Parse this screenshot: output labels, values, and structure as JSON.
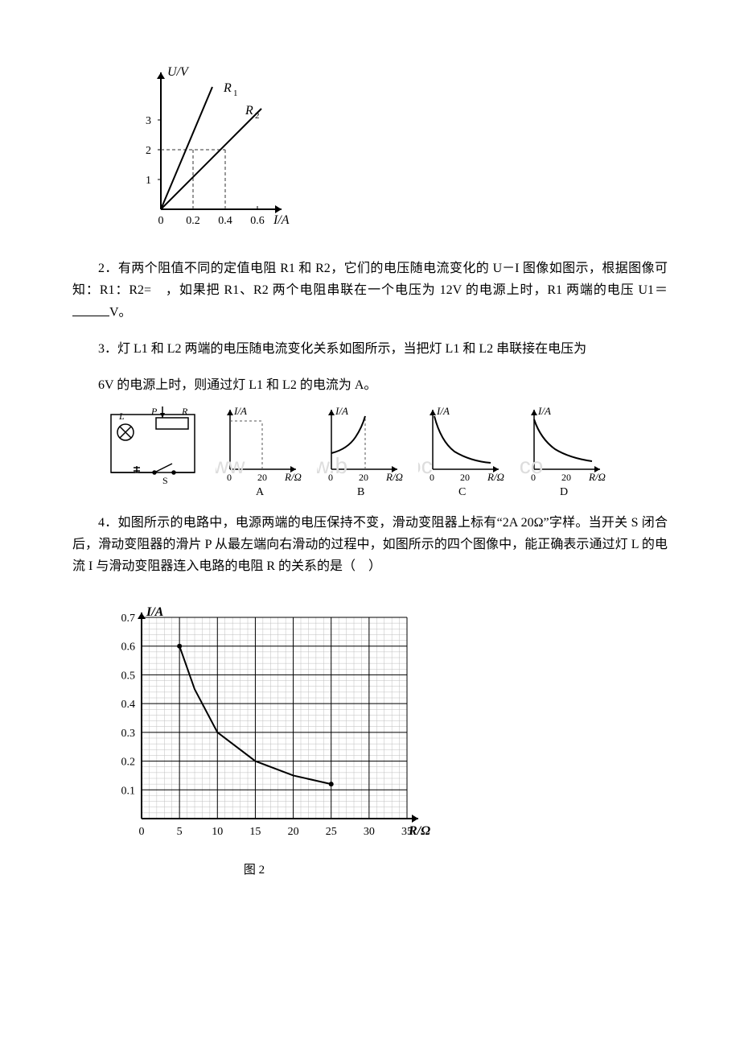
{
  "chart1": {
    "type": "line",
    "y_axis_label": "U/V",
    "x_axis_label": "I/A",
    "x_ticks": [
      "0",
      "0.2",
      "0.4",
      "0.6"
    ],
    "y_ticks": [
      "1",
      "2",
      "3"
    ],
    "series": [
      {
        "name": "R1",
        "label": "R₁",
        "points": [
          [
            0,
            0
          ],
          [
            0.2,
            2
          ],
          [
            0.32,
            3.1
          ]
        ],
        "color": "#000000"
      },
      {
        "name": "R2",
        "label": "R₂",
        "points": [
          [
            0,
            0
          ],
          [
            0.4,
            2
          ],
          [
            0.62,
            3.1
          ]
        ],
        "color": "#000000"
      }
    ],
    "colors": {
      "axis": "#000000",
      "dash": "#333333",
      "bg": "#ffffff"
    },
    "dash_lines": [
      {
        "from": [
          0.2,
          0
        ],
        "to": [
          0.2,
          2
        ]
      },
      {
        "from": [
          0,
          2
        ],
        "to": [
          0.4,
          2
        ]
      },
      {
        "from": [
          0.4,
          0
        ],
        "to": [
          0.4,
          2
        ]
      }
    ],
    "line_width": 2
  },
  "q2": {
    "prefix": "2．有两个阻值不同的定值电阻 R1 和 R2，它们的电压随电流变化的 U－I 图像如图示，根据图像可知：R1：R2=　，如果把 R1、R2 两个电阻串联在一个电压为 12V 的电源上时，R1 两端的电压 U1＝",
    "suffix": "V。"
  },
  "q3": {
    "line1": "3．灯 L1 和 L2 两端的电压随电流变化关系如图所示，当把灯 L1 和 L2 串联接在电压为",
    "line2": "6V 的电源上时，则通过灯 L1 和 L2 的电流为 A。"
  },
  "q4": {
    "text": "4．如图所示的电路中，电源两端的电压保持不变，滑动变阻器上标有“2A 20Ω”字样。当开关 S 闭合后，滑动变阻器的滑片 P 从最左端向右滑动的过程中，如图所示的四个图像中，能正确表示通过灯 L 的电流 I 与滑动变阻器连入电路的电阻 R 的关系的是（　）",
    "circuit": {
      "lamp_label": "L",
      "slider_label": "P",
      "resistor_label": "R",
      "switch_label": "S"
    },
    "mini_charts": {
      "y_label": "I/A",
      "x_label": "R/Ω",
      "x_tick": "20",
      "options": [
        "A",
        "B",
        "C",
        "D"
      ],
      "shapes": [
        "vline-dash",
        "rising-curve",
        "falling-curve",
        "falling-curve-low"
      ]
    },
    "colors": {
      "axis": "#000000",
      "dash": "#555555",
      "curve": "#000000"
    }
  },
  "chart2": {
    "type": "line",
    "y_axis_label": "I/A",
    "x_axis_label": "R/Ω",
    "x_ticks": [
      "0",
      "5",
      "10",
      "15",
      "20",
      "25",
      "30",
      "35"
    ],
    "y_ticks": [
      "0.1",
      "0.2",
      "0.3",
      "0.4",
      "0.5",
      "0.6",
      "0.7"
    ],
    "xlim": [
      0,
      35
    ],
    "ylim": [
      0,
      0.7
    ],
    "major_step_x": 5,
    "major_step_y": 0.1,
    "minor_per_major": 5,
    "colors": {
      "major_grid": "#000000",
      "minor_grid": "#bfbfbf",
      "axis": "#000000",
      "bg": "#ffffff",
      "curve": "#000000"
    },
    "curve_points": [
      [
        5,
        0.6
      ],
      [
        7,
        0.45
      ],
      [
        10,
        0.3
      ],
      [
        15,
        0.2
      ],
      [
        20,
        0.15
      ],
      [
        25,
        0.12
      ]
    ],
    "markers": [
      [
        5,
        0.6
      ],
      [
        25,
        0.12
      ]
    ],
    "caption": "图 2",
    "line_width": 2,
    "marker_radius": 3
  },
  "watermark_text": "www.b   oc .co"
}
